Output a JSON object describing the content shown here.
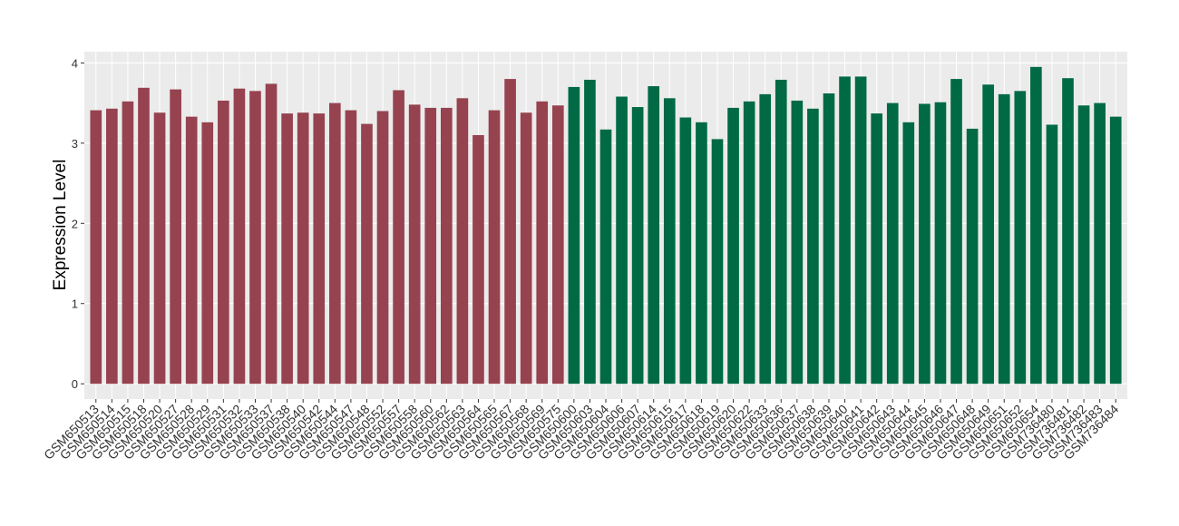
{
  "chart_data": {
    "type": "bar",
    "y_label": "Expression Level",
    "categories": [
      "GSM650513",
      "GSM650514",
      "GSM650515",
      "GSM650518",
      "GSM650520",
      "GSM650527",
      "GSM650528",
      "GSM650529",
      "GSM650531",
      "GSM650532",
      "GSM650533",
      "GSM650537",
      "GSM650538",
      "GSM650540",
      "GSM650542",
      "GSM650544",
      "GSM650547",
      "GSM650548",
      "GSM650552",
      "GSM650557",
      "GSM650558",
      "GSM650560",
      "GSM650562",
      "GSM650563",
      "GSM650564",
      "GSM650565",
      "GSM650567",
      "GSM650568",
      "GSM650569",
      "GSM650575",
      "GSM650600",
      "GSM650603",
      "GSM650604",
      "GSM650606",
      "GSM650607",
      "GSM650614",
      "GSM650615",
      "GSM650617",
      "GSM650618",
      "GSM650619",
      "GSM650620",
      "GSM650622",
      "GSM650633",
      "GSM650636",
      "GSM650637",
      "GSM650638",
      "GSM650639",
      "GSM650640",
      "GSM650641",
      "GSM650642",
      "GSM650643",
      "GSM650644",
      "GSM650645",
      "GSM650646",
      "GSM650647",
      "GSM650648",
      "GSM650649",
      "GSM650651",
      "GSM650652",
      "GSM650654",
      "GSM736480",
      "GSM736481",
      "GSM736482",
      "GSM736483",
      "GSM736484"
    ],
    "values": [
      3.41,
      3.43,
      3.52,
      3.69,
      3.38,
      3.67,
      3.33,
      3.26,
      3.53,
      3.68,
      3.65,
      3.74,
      3.37,
      3.38,
      3.37,
      3.5,
      3.41,
      3.24,
      3.4,
      3.66,
      3.48,
      3.44,
      3.44,
      3.56,
      3.1,
      3.41,
      3.8,
      3.38,
      3.52,
      3.47,
      3.7,
      3.79,
      3.17,
      3.58,
      3.45,
      3.71,
      3.56,
      3.32,
      3.26,
      3.05,
      3.44,
      3.52,
      3.61,
      3.79,
      3.53,
      3.43,
      3.62,
      3.83,
      3.83,
      3.37,
      3.5,
      3.26,
      3.49,
      3.51,
      3.8,
      3.18,
      3.73,
      3.61,
      3.65,
      3.95,
      3.23,
      3.81,
      3.47,
      3.5,
      3.33
    ],
    "colors": [
      "#96434f",
      "#96434f",
      "#96434f",
      "#96434f",
      "#96434f",
      "#96434f",
      "#96434f",
      "#96434f",
      "#96434f",
      "#96434f",
      "#96434f",
      "#96434f",
      "#96434f",
      "#96434f",
      "#96434f",
      "#96434f",
      "#96434f",
      "#96434f",
      "#96434f",
      "#96434f",
      "#96434f",
      "#96434f",
      "#96434f",
      "#96434f",
      "#96434f",
      "#96434f",
      "#96434f",
      "#96434f",
      "#96434f",
      "#96434f",
      "#006a45",
      "#006a45",
      "#006a45",
      "#006a45",
      "#006a45",
      "#006a45",
      "#006a45",
      "#006a45",
      "#006a45",
      "#006a45",
      "#006a45",
      "#006a45",
      "#006a45",
      "#006a45",
      "#006a45",
      "#006a45",
      "#006a45",
      "#006a45",
      "#006a45",
      "#006a45",
      "#006a45",
      "#006a45",
      "#006a45",
      "#006a45",
      "#006a45",
      "#006a45",
      "#006a45",
      "#006a45",
      "#006a45",
      "#006a45",
      "#006a45",
      "#006a45",
      "#006a45",
      "#006a45",
      "#006a45"
    ],
    "ylim": [
      -0.19,
      4.14
    ],
    "yticks": [
      0,
      1,
      2,
      3,
      4
    ],
    "grid": true
  }
}
